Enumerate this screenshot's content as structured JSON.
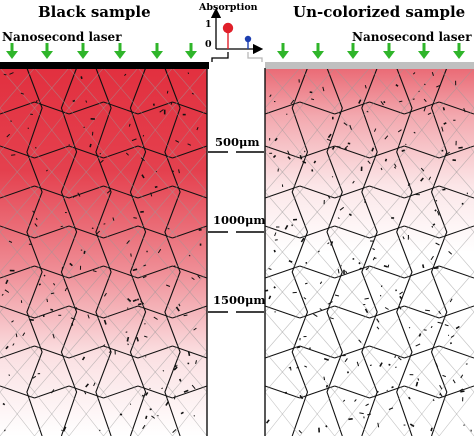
{
  "left_panel": {
    "title": "Black sample",
    "laser_label": "Nanosecond laser",
    "top_layer_color": "#000000",
    "gradient_color": "#e2303f"
  },
  "right_panel": {
    "title": "Un-colorized sample",
    "laser_label": "Nanosecond laser",
    "top_layer_color": "#c0c0c0",
    "gradient_color": "#e2303f"
  },
  "inset": {
    "ylabel": "Absorption",
    "tick_top": "1",
    "tick_bottom": "0",
    "black_marker_color": "#e0202a",
    "uncolorized_marker_color": "#1d3fb0"
  },
  "depth_labels": [
    "500μm",
    "1000μm",
    "1500μm"
  ],
  "colors": {
    "arrow": "#2fb52a",
    "cell_line": "#111111",
    "cross_line": "#9a9a9a"
  }
}
